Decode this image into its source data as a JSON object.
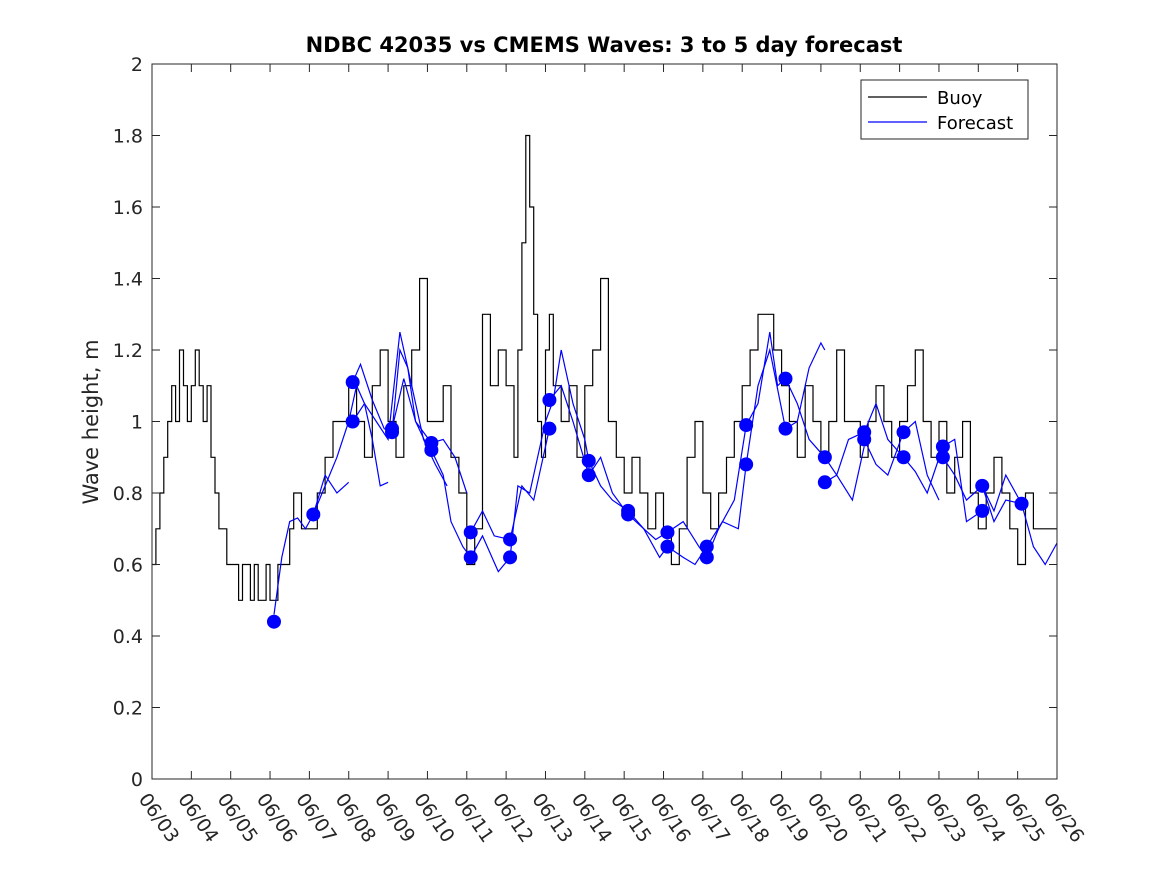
{
  "chart_data": {
    "type": "line",
    "title": "NDBC 42035 vs CMEMS Waves: 3 to 5 day forecast",
    "ylabel": "Wave height, m",
    "xlabel": "",
    "xlim": [
      3,
      26
    ],
    "ylim": [
      0,
      2
    ],
    "yticks": [
      0,
      0.2,
      0.4,
      0.6,
      0.8,
      1,
      1.2,
      1.4,
      1.6,
      1.8,
      2
    ],
    "ytick_labels": [
      "0",
      "0.2",
      "0.4",
      "0.6",
      "0.8",
      "1",
      "1.2",
      "1.4",
      "1.6",
      "1.8",
      "2"
    ],
    "xticks": [
      3,
      4,
      5,
      6,
      7,
      8,
      9,
      10,
      11,
      12,
      13,
      14,
      15,
      16,
      17,
      18,
      19,
      20,
      21,
      22,
      23,
      24,
      25,
      26
    ],
    "xtick_labels": [
      "06/03",
      "06/04",
      "06/05",
      "06/06",
      "06/07",
      "06/08",
      "06/09",
      "06/10",
      "06/11",
      "06/12",
      "06/13",
      "06/14",
      "06/15",
      "06/16",
      "06/17",
      "06/18",
      "06/19",
      "06/20",
      "06/21",
      "06/22",
      "06/23",
      "06/24",
      "06/25",
      "06/26"
    ],
    "legend": {
      "position": "top-right",
      "entries": [
        "Buoy",
        "Forecast"
      ]
    },
    "colors": {
      "buoy": "#000000",
      "forecast": "#0000ff"
    },
    "series": [
      {
        "name": "Buoy",
        "x": [
          3.0,
          3.1,
          3.2,
          3.3,
          3.4,
          3.5,
          3.6,
          3.7,
          3.8,
          3.9,
          4.0,
          4.1,
          4.2,
          4.3,
          4.4,
          4.5,
          4.6,
          4.7,
          4.8,
          4.9,
          5.0,
          5.1,
          5.2,
          5.3,
          5.4,
          5.5,
          5.6,
          5.7,
          5.8,
          5.9,
          6.0,
          6.1,
          6.2,
          6.3,
          6.4,
          6.5,
          6.6,
          6.7,
          6.8,
          6.9,
          7.0,
          7.2,
          7.4,
          7.6,
          7.8,
          8.0,
          8.2,
          8.4,
          8.6,
          8.8,
          9.0,
          9.2,
          9.4,
          9.6,
          9.8,
          10.0,
          10.2,
          10.4,
          10.6,
          10.8,
          11.0,
          11.2,
          11.4,
          11.6,
          11.8,
          12.0,
          12.2,
          12.3,
          12.4,
          12.5,
          12.6,
          12.7,
          12.8,
          12.9,
          13.0,
          13.1,
          13.2,
          13.4,
          13.6,
          13.8,
          14.0,
          14.2,
          14.4,
          14.6,
          14.8,
          15.0,
          15.2,
          15.4,
          15.6,
          15.8,
          16.0,
          16.2,
          16.4,
          16.6,
          16.8,
          17.0,
          17.2,
          17.4,
          17.6,
          17.8,
          18.0,
          18.2,
          18.4,
          18.6,
          18.8,
          19.0,
          19.2,
          19.4,
          19.6,
          19.8,
          20.0,
          20.2,
          20.4,
          20.6,
          20.8,
          21.0,
          21.2,
          21.4,
          21.6,
          21.8,
          22.0,
          22.2,
          22.4,
          22.6,
          22.8,
          23.0,
          23.2,
          23.4,
          23.6,
          23.8,
          24.0,
          24.2,
          24.4,
          24.6,
          24.8,
          25.0,
          25.2,
          25.4,
          25.6,
          25.8,
          26.0
        ],
        "y": [
          0.6,
          0.7,
          0.8,
          0.9,
          1.0,
          1.1,
          1.0,
          1.2,
          1.1,
          1.0,
          1.1,
          1.2,
          1.1,
          1.0,
          1.1,
          0.9,
          0.8,
          0.7,
          0.7,
          0.6,
          0.6,
          0.6,
          0.5,
          0.6,
          0.6,
          0.5,
          0.6,
          0.5,
          0.5,
          0.6,
          0.5,
          0.5,
          0.6,
          0.6,
          0.6,
          0.7,
          0.8,
          0.8,
          0.7,
          0.7,
          0.7,
          0.8,
          0.9,
          1.0,
          1.0,
          1.1,
          1.0,
          0.9,
          1.1,
          1.2,
          1.0,
          0.9,
          1.1,
          1.2,
          1.4,
          1.0,
          1.0,
          1.1,
          0.9,
          0.8,
          0.6,
          0.7,
          1.3,
          1.1,
          1.2,
          1.1,
          0.9,
          1.2,
          1.5,
          1.8,
          1.6,
          1.3,
          1.0,
          0.9,
          1.2,
          1.3,
          1.1,
          1.0,
          1.1,
          0.9,
          1.1,
          1.2,
          1.4,
          1.0,
          0.9,
          0.8,
          0.9,
          0.8,
          0.7,
          0.8,
          0.7,
          0.6,
          0.7,
          0.9,
          1.0,
          0.8,
          0.7,
          0.8,
          0.9,
          1.0,
          1.1,
          1.2,
          1.3,
          1.3,
          1.2,
          1.1,
          1.0,
          0.9,
          1.1,
          1.0,
          0.9,
          1.0,
          1.2,
          1.0,
          1.0,
          0.9,
          1.0,
          1.1,
          1.0,
          0.9,
          1.0,
          1.1,
          1.2,
          1.0,
          0.9,
          1.0,
          0.8,
          0.9,
          1.0,
          0.8,
          0.7,
          0.8,
          0.9,
          0.8,
          0.7,
          0.6,
          0.8,
          0.7,
          0.7,
          0.7,
          0.7
        ]
      },
      {
        "name": "Forecast",
        "segments": [
          [
            [
              6.1,
              0.46
            ],
            [
              6.3,
              0.62
            ],
            [
              6.5,
              0.72
            ],
            [
              6.7,
              0.73
            ],
            [
              6.9,
              0.7
            ],
            [
              7.1,
              0.74
            ],
            [
              7.4,
              0.85
            ],
            [
              7.7,
              0.8
            ],
            [
              8.0,
              0.83
            ]
          ],
          [
            [
              7.1,
              0.74
            ],
            [
              7.4,
              0.82
            ],
            [
              7.7,
              0.9
            ],
            [
              8.0,
              1.0
            ],
            [
              8.2,
              1.1
            ],
            [
              8.4,
              1.05
            ],
            [
              8.6,
              0.95
            ],
            [
              8.8,
              0.82
            ],
            [
              9.0,
              0.83
            ]
          ],
          [
            [
              8.1,
              1.11
            ],
            [
              8.3,
              1.16
            ],
            [
              8.6,
              1.06
            ],
            [
              8.9,
              0.98
            ],
            [
              9.1,
              0.97
            ],
            [
              9.3,
              1.2
            ],
            [
              9.5,
              1.15
            ],
            [
              9.7,
              1.0
            ],
            [
              10.0,
              0.93
            ]
          ],
          [
            [
              8.1,
              1.0
            ],
            [
              8.4,
              1.05
            ],
            [
              8.7,
              1.0
            ],
            [
              9.0,
              0.95
            ],
            [
              9.3,
              1.25
            ],
            [
              9.6,
              1.1
            ],
            [
              9.9,
              0.95
            ],
            [
              10.2,
              0.88
            ],
            [
              10.5,
              0.82
            ]
          ],
          [
            [
              9.1,
              0.98
            ],
            [
              9.4,
              1.12
            ],
            [
              9.7,
              1.0
            ],
            [
              10.1,
              0.94
            ],
            [
              10.4,
              0.95
            ],
            [
              10.7,
              0.9
            ],
            [
              11.0,
              0.8
            ]
          ],
          [
            [
              10.1,
              0.92
            ],
            [
              10.4,
              0.85
            ],
            [
              10.6,
              0.72
            ],
            [
              10.9,
              0.65
            ],
            [
              11.1,
              0.62
            ],
            [
              11.4,
              0.68
            ],
            [
              11.8,
              0.58
            ],
            [
              12.1,
              0.62
            ]
          ],
          [
            [
              11.1,
              0.69
            ],
            [
              11.4,
              0.75
            ],
            [
              11.7,
              0.68
            ],
            [
              12.1,
              0.67
            ],
            [
              12.4,
              0.82
            ],
            [
              12.7,
              0.78
            ],
            [
              13.1,
              0.98
            ]
          ],
          [
            [
              12.1,
              0.62
            ],
            [
              12.3,
              0.82
            ],
            [
              12.6,
              0.8
            ],
            [
              13.0,
              1.0
            ],
            [
              13.2,
              1.06
            ],
            [
              13.4,
              1.2
            ],
            [
              13.7,
              1.05
            ],
            [
              14.0,
              0.95
            ],
            [
              14.1,
              0.89
            ]
          ],
          [
            [
              13.1,
              1.06
            ],
            [
              13.4,
              1.1
            ],
            [
              13.7,
              1.0
            ],
            [
              14.1,
              0.85
            ],
            [
              14.4,
              0.9
            ],
            [
              14.7,
              0.8
            ],
            [
              15.1,
              0.74
            ]
          ],
          [
            [
              14.1,
              0.89
            ],
            [
              14.4,
              0.82
            ],
            [
              14.7,
              0.78
            ],
            [
              15.1,
              0.75
            ],
            [
              15.5,
              0.7
            ],
            [
              15.9,
              0.62
            ],
            [
              16.1,
              0.65
            ]
          ],
          [
            [
              15.1,
              0.74
            ],
            [
              15.5,
              0.7
            ],
            [
              15.8,
              0.67
            ],
            [
              16.1,
              0.69
            ],
            [
              16.5,
              0.72
            ],
            [
              16.9,
              0.65
            ],
            [
              17.1,
              0.62
            ]
          ],
          [
            [
              16.1,
              0.65
            ],
            [
              16.5,
              0.62
            ],
            [
              16.8,
              0.6
            ],
            [
              17.1,
              0.65
            ],
            [
              17.5,
              0.72
            ],
            [
              17.9,
              0.7
            ],
            [
              18.1,
              0.88
            ]
          ],
          [
            [
              17.1,
              0.62
            ],
            [
              17.4,
              0.7
            ],
            [
              17.8,
              0.78
            ],
            [
              18.1,
              0.99
            ],
            [
              18.4,
              1.05
            ],
            [
              18.7,
              1.25
            ],
            [
              18.9,
              1.1
            ],
            [
              19.1,
              1.12
            ]
          ],
          [
            [
              18.1,
              0.88
            ],
            [
              18.4,
              1.1
            ],
            [
              18.7,
              1.2
            ],
            [
              19.1,
              0.98
            ],
            [
              19.4,
              1.0
            ],
            [
              19.7,
              1.15
            ],
            [
              20.0,
              1.22
            ],
            [
              20.1,
              1.2
            ]
          ],
          [
            [
              19.1,
              1.12
            ],
            [
              19.4,
              1.05
            ],
            [
              19.7,
              0.95
            ],
            [
              20.1,
              0.9
            ],
            [
              20.4,
              0.85
            ],
            [
              20.8,
              0.78
            ],
            [
              21.1,
              0.93
            ]
          ],
          [
            [
              20.1,
              0.83
            ],
            [
              20.4,
              0.85
            ],
            [
              20.7,
              0.95
            ],
            [
              21.1,
              0.97
            ],
            [
              21.4,
              1.05
            ],
            [
              21.7,
              0.95
            ],
            [
              22.1,
              0.9
            ]
          ],
          [
            [
              21.1,
              0.95
            ],
            [
              21.4,
              0.88
            ],
            [
              21.7,
              0.85
            ],
            [
              22.1,
              0.97
            ],
            [
              22.4,
              1.0
            ],
            [
              22.7,
              0.85
            ],
            [
              23.0,
              0.78
            ]
          ],
          [
            [
              22.1,
              0.9
            ],
            [
              22.4,
              0.86
            ],
            [
              22.7,
              0.8
            ],
            [
              23.1,
              0.93
            ],
            [
              23.4,
              0.95
            ],
            [
              23.7,
              0.72
            ],
            [
              24.1,
              0.75
            ]
          ],
          [
            [
              23.1,
              0.9
            ],
            [
              23.4,
              0.85
            ],
            [
              23.7,
              0.78
            ],
            [
              24.1,
              0.82
            ],
            [
              24.4,
              0.75
            ],
            [
              24.7,
              0.85
            ],
            [
              25.1,
              0.77
            ]
          ],
          [
            [
              24.1,
              0.82
            ],
            [
              24.4,
              0.72
            ],
            [
              24.7,
              0.78
            ],
            [
              25.1,
              0.77
            ],
            [
              25.4,
              0.65
            ],
            [
              25.7,
              0.6
            ],
            [
              26.0,
              0.66
            ]
          ]
        ],
        "markers": [
          [
            6.1,
            0.44
          ],
          [
            7.1,
            0.74
          ],
          [
            8.1,
            1.11
          ],
          [
            8.1,
            1.0
          ],
          [
            9.1,
            0.98
          ],
          [
            9.1,
            0.97
          ],
          [
            10.1,
            0.94
          ],
          [
            10.1,
            0.92
          ],
          [
            11.1,
            0.69
          ],
          [
            11.1,
            0.62
          ],
          [
            12.1,
            0.67
          ],
          [
            12.1,
            0.62
          ],
          [
            13.1,
            1.06
          ],
          [
            13.1,
            0.98
          ],
          [
            14.1,
            0.89
          ],
          [
            14.1,
            0.85
          ],
          [
            15.1,
            0.75
          ],
          [
            15.1,
            0.74
          ],
          [
            16.1,
            0.69
          ],
          [
            16.1,
            0.65
          ],
          [
            17.1,
            0.65
          ],
          [
            17.1,
            0.62
          ],
          [
            18.1,
            0.99
          ],
          [
            18.1,
            0.88
          ],
          [
            19.1,
            1.12
          ],
          [
            19.1,
            0.98
          ],
          [
            20.1,
            0.9
          ],
          [
            20.1,
            0.83
          ],
          [
            21.1,
            0.97
          ],
          [
            21.1,
            0.95
          ],
          [
            22.1,
            0.97
          ],
          [
            22.1,
            0.9
          ],
          [
            23.1,
            0.93
          ],
          [
            23.1,
            0.9
          ],
          [
            24.1,
            0.82
          ],
          [
            24.1,
            0.75
          ],
          [
            25.1,
            0.77
          ]
        ]
      }
    ]
  }
}
